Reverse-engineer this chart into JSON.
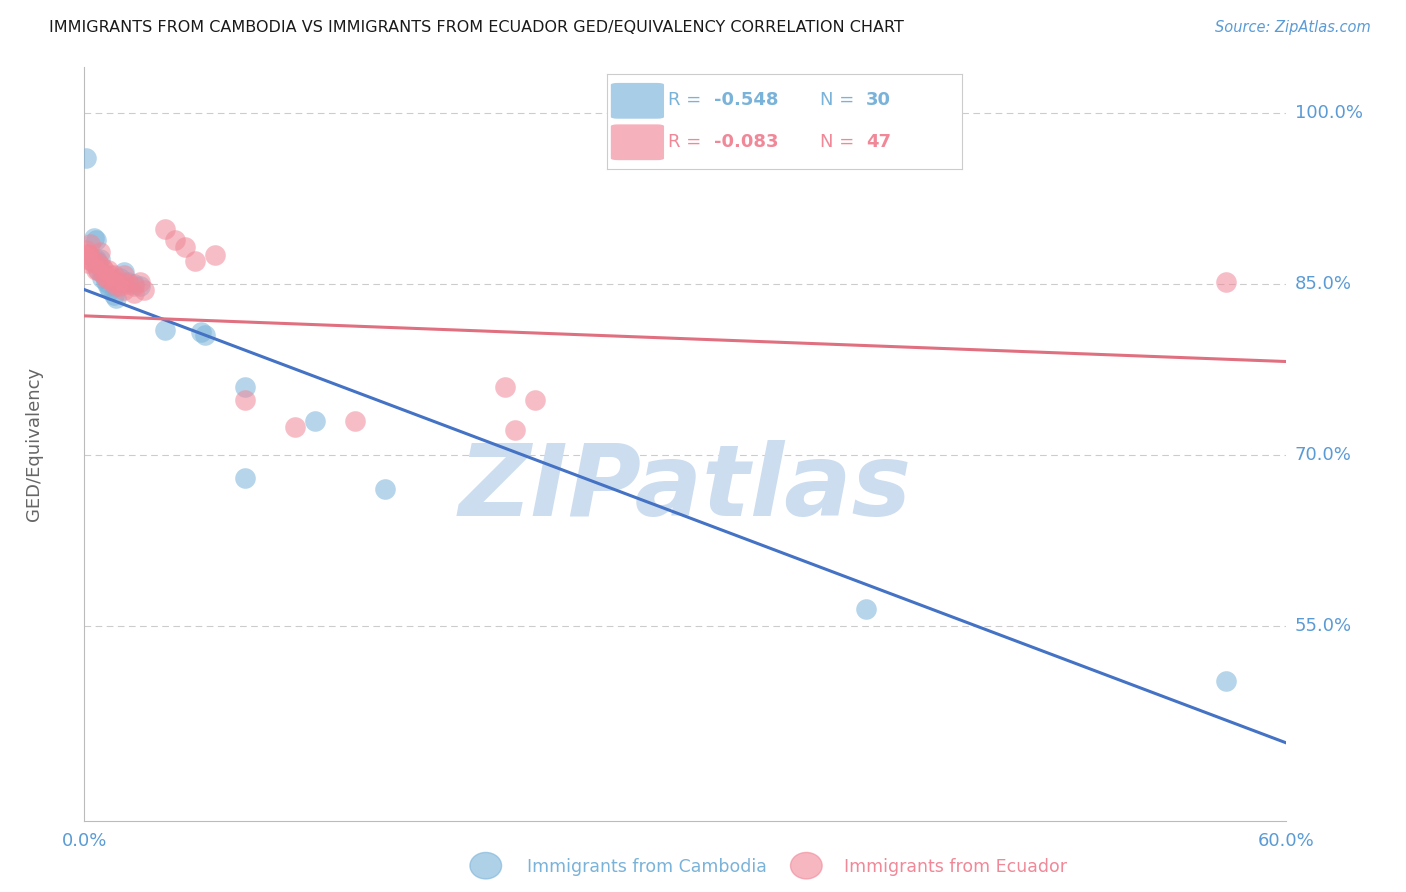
{
  "title": "IMMIGRANTS FROM CAMBODIA VS IMMIGRANTS FROM ECUADOR GED/EQUIVALENCY CORRELATION CHART",
  "source": "Source: ZipAtlas.com",
  "ylabel": "GED/Equivalency",
  "xlim": [
    0.0,
    0.6
  ],
  "ylim": [
    0.38,
    1.04
  ],
  "ytick_positions": [
    0.55,
    0.7,
    0.85,
    1.0
  ],
  "ytick_labels": [
    "55.0%",
    "70.0%",
    "85.0%",
    "100.0%"
  ],
  "xtick_positions": [
    0.0,
    0.6
  ],
  "xtick_labels": [
    "0.0%",
    "60.0%"
  ],
  "cambodia_color": "#7ab3d9",
  "ecuador_color": "#f08898",
  "cambodia_line_color": "#4472c4",
  "ecuador_line_color": "#e07080",
  "cambodia_scatter": [
    [
      0.001,
      0.96
    ],
    [
      0.005,
      0.89
    ],
    [
      0.006,
      0.888
    ],
    [
      0.006,
      0.872
    ],
    [
      0.006,
      0.87
    ],
    [
      0.007,
      0.868
    ],
    [
      0.007,
      0.862
    ],
    [
      0.008,
      0.872
    ],
    [
      0.009,
      0.86
    ],
    [
      0.009,
      0.855
    ],
    [
      0.01,
      0.858
    ],
    [
      0.011,
      0.852
    ],
    [
      0.012,
      0.848
    ],
    [
      0.013,
      0.845
    ],
    [
      0.015,
      0.84
    ],
    [
      0.016,
      0.838
    ],
    [
      0.018,
      0.855
    ],
    [
      0.02,
      0.86
    ],
    [
      0.022,
      0.852
    ],
    [
      0.025,
      0.85
    ],
    [
      0.028,
      0.848
    ],
    [
      0.04,
      0.81
    ],
    [
      0.058,
      0.808
    ],
    [
      0.06,
      0.805
    ],
    [
      0.08,
      0.76
    ],
    [
      0.115,
      0.73
    ],
    [
      0.08,
      0.68
    ],
    [
      0.15,
      0.67
    ],
    [
      0.39,
      0.565
    ],
    [
      0.57,
      0.502
    ]
  ],
  "ecuador_scatter": [
    [
      0.001,
      0.88
    ],
    [
      0.001,
      0.876
    ],
    [
      0.001,
      0.872
    ],
    [
      0.002,
      0.876
    ],
    [
      0.002,
      0.868
    ],
    [
      0.003,
      0.885
    ],
    [
      0.003,
      0.875
    ],
    [
      0.004,
      0.87
    ],
    [
      0.005,
      0.868
    ],
    [
      0.006,
      0.862
    ],
    [
      0.007,
      0.868
    ],
    [
      0.007,
      0.862
    ],
    [
      0.008,
      0.878
    ],
    [
      0.009,
      0.865
    ],
    [
      0.01,
      0.862
    ],
    [
      0.01,
      0.858
    ],
    [
      0.011,
      0.855
    ],
    [
      0.012,
      0.862
    ],
    [
      0.012,
      0.855
    ],
    [
      0.013,
      0.858
    ],
    [
      0.014,
      0.852
    ],
    [
      0.015,
      0.858
    ],
    [
      0.015,
      0.852
    ],
    [
      0.016,
      0.848
    ],
    [
      0.017,
      0.852
    ],
    [
      0.018,
      0.848
    ],
    [
      0.02,
      0.858
    ],
    [
      0.02,
      0.852
    ],
    [
      0.02,
      0.845
    ],
    [
      0.022,
      0.85
    ],
    [
      0.025,
      0.848
    ],
    [
      0.025,
      0.842
    ],
    [
      0.028,
      0.852
    ],
    [
      0.03,
      0.845
    ],
    [
      0.04,
      0.898
    ],
    [
      0.045,
      0.888
    ],
    [
      0.05,
      0.882
    ],
    [
      0.055,
      0.87
    ],
    [
      0.065,
      0.875
    ],
    [
      0.08,
      0.748
    ],
    [
      0.105,
      0.725
    ],
    [
      0.135,
      0.73
    ],
    [
      0.21,
      0.76
    ],
    [
      0.215,
      0.722
    ],
    [
      0.225,
      0.748
    ],
    [
      0.57,
      0.852
    ]
  ],
  "cambodia_line": [
    0.0,
    0.845,
    0.6,
    0.448
  ],
  "ecuador_line": [
    0.0,
    0.822,
    0.6,
    0.782
  ],
  "watermark": "ZIPatlas",
  "watermark_color": "#ccddf0",
  "bg_color": "#ffffff",
  "grid_color": "#cccccc",
  "text_color": "#333333",
  "axis_tick_color": "#5b9bd5",
  "bottom_label1": "Immigrants from Cambodia",
  "bottom_label2": "Immigrants from Ecuador"
}
